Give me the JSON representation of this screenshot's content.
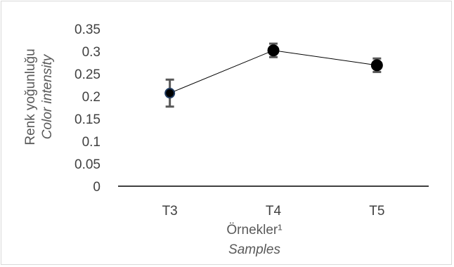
{
  "chart_data": {
    "type": "line",
    "categories": [
      "T3",
      "T4",
      "T5"
    ],
    "series": [
      {
        "values": [
          0.207,
          0.302,
          0.269
        ],
        "errors": [
          0.03,
          0.015,
          0.015
        ]
      }
    ],
    "ylim": [
      0,
      0.35
    ],
    "yticks": [
      "0",
      "0.05",
      "0.1",
      "0.15",
      "0.2",
      "0.25",
      "0.3",
      "0.35"
    ],
    "ylabel": "Renk yoğunluğu",
    "ylabel_en": "Color intensity",
    "xlabel": "Örnekler¹",
    "xlabel_en": "Samples",
    "grid": false,
    "colors": {
      "line": "#000000",
      "marker": "#000000",
      "first_marker": "#1f3a5f",
      "errorbar": "#595959",
      "axis": "#000000",
      "text": "#404040"
    }
  }
}
